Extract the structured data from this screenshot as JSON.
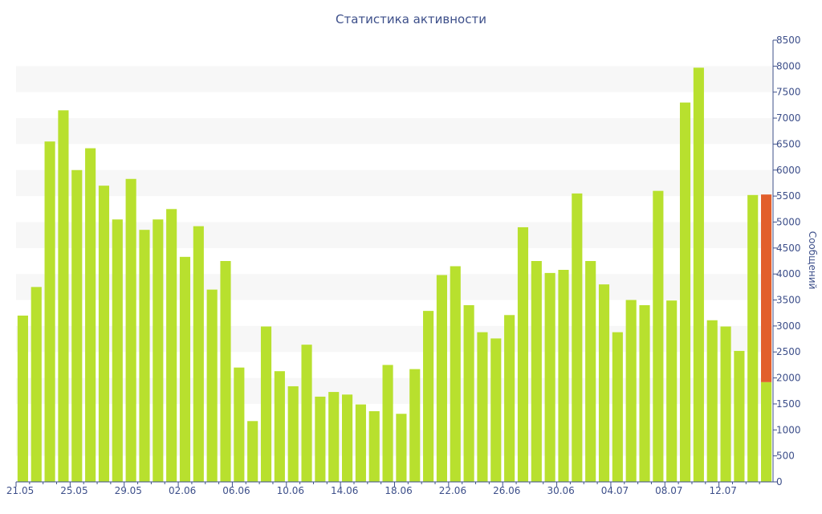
{
  "chart_data": {
    "type": "bar",
    "title": "Статистика активности",
    "xlabel": "",
    "ylabel": "Сообщений",
    "ylim": [
      0,
      8500
    ],
    "y_axis_side": "right",
    "y_ticks": [
      0,
      500,
      1000,
      1500,
      2000,
      2500,
      3000,
      3500,
      4000,
      4500,
      5000,
      5500,
      6000,
      6500,
      7000,
      7500,
      8000,
      8500
    ],
    "x_tick_labels": [
      "21.05",
      "25.05",
      "29.05",
      "02.06",
      "06.06",
      "10.06",
      "14.06",
      "18.06",
      "22.06",
      "26.06",
      "30.06",
      "04.07",
      "08.07",
      "12.07"
    ],
    "x_tick_every": 4,
    "grid": "alternating horizontal bands",
    "colors": {
      "bar": "#b8e02e",
      "highlight": "#e25f2c",
      "text": "#3d4f8a",
      "band": "#f7f7f7",
      "axis": "#3d4f8a"
    },
    "categories": [
      "21.05",
      "22.05",
      "23.05",
      "24.05",
      "25.05",
      "26.05",
      "27.05",
      "28.05",
      "29.05",
      "30.05",
      "31.05",
      "01.06",
      "02.06",
      "03.06",
      "04.06",
      "05.06",
      "06.06",
      "07.06",
      "08.06",
      "09.06",
      "10.06",
      "11.06",
      "12.06",
      "13.06",
      "14.06",
      "15.06",
      "16.06",
      "17.06",
      "18.06",
      "19.06",
      "20.06",
      "21.06",
      "22.06",
      "23.06",
      "24.06",
      "25.06",
      "26.06",
      "27.06",
      "28.06",
      "29.06",
      "30.06",
      "01.07",
      "02.07",
      "03.07",
      "04.07",
      "05.07",
      "06.07",
      "07.07",
      "08.07",
      "09.07",
      "10.07",
      "11.07",
      "12.07",
      "13.07",
      "14.07",
      "15.07"
    ],
    "series": [
      {
        "values": [
          3200,
          3750,
          6550,
          7150,
          6000,
          6420,
          5700,
          5050,
          5830,
          4850,
          5050,
          5250,
          4330,
          4920,
          3700,
          4250,
          2200,
          1170,
          2990,
          2130,
          1840,
          2640,
          1640,
          1730,
          1680,
          1490,
          1360,
          2250,
          1310,
          2170,
          3290,
          3980,
          4150,
          3400,
          2880,
          2760,
          3210,
          4900,
          4250,
          4020,
          4080,
          5550,
          4250,
          3800,
          2880,
          3500,
          3400,
          5600,
          3490,
          7300,
          7970,
          3110,
          2990,
          2520,
          5520,
          1920
        ]
      },
      {
        "values": [
          0,
          0,
          0,
          0,
          0,
          0,
          0,
          0,
          0,
          0,
          0,
          0,
          0,
          0,
          0,
          0,
          0,
          0,
          0,
          0,
          0,
          0,
          0,
          0,
          0,
          0,
          0,
          0,
          0,
          0,
          0,
          0,
          0,
          0,
          0,
          0,
          0,
          0,
          0,
          0,
          0,
          0,
          0,
          0,
          0,
          0,
          0,
          0,
          0,
          0,
          0,
          0,
          0,
          0,
          0,
          3610
        ]
      }
    ]
  }
}
